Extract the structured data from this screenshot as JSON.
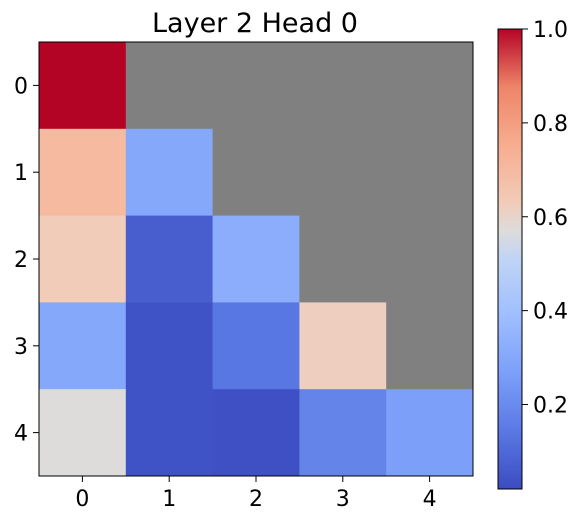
{
  "chart_data": {
    "type": "heatmap",
    "title": "Layer 2 Head 0",
    "x_tick_labels": [
      "0",
      "1",
      "2",
      "3",
      "4"
    ],
    "y_tick_labels": [
      "0",
      "1",
      "2",
      "3",
      "4"
    ],
    "values": [
      [
        1.0,
        null,
        null,
        null,
        null
      ],
      [
        0.7,
        0.3,
        null,
        null,
        null
      ],
      [
        0.63,
        0.07,
        0.32,
        null,
        null
      ],
      [
        0.3,
        0.04,
        0.14,
        0.62,
        null
      ],
      [
        0.57,
        0.04,
        0.03,
        0.18,
        0.27
      ]
    ],
    "masked_color": "#808080",
    "colormap": "coolwarm",
    "colorbar": {
      "range": [
        0.02,
        1.0
      ],
      "tick_values": [
        0.2,
        0.4,
        0.6,
        0.8,
        1.0
      ],
      "tick_labels": [
        "0.2",
        "0.4",
        "0.6",
        "0.8",
        "1.0"
      ],
      "placement": "right"
    },
    "grid": false
  }
}
